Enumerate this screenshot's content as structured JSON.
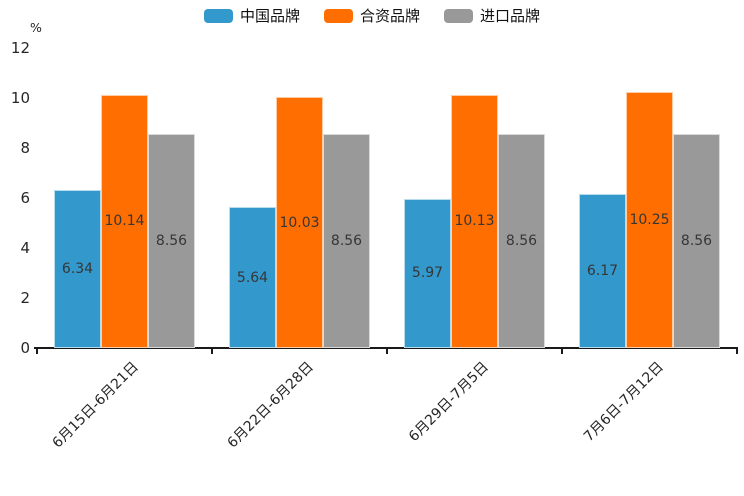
{
  "chart_data": {
    "type": "bar",
    "title": "",
    "xlabel": "",
    "ylabel": "%",
    "ylim": [
      0,
      12
    ],
    "yticks": [
      0,
      2,
      4,
      6,
      8,
      10,
      12
    ],
    "grid": false,
    "legend_position": "top-center",
    "value_labels": "centered-inside-bars",
    "value_label_decimals": 2,
    "categories": [
      "6月15日-6月21日",
      "6月22日-6月28日",
      "6月29日-7月5日",
      "7月6日-7月12日"
    ],
    "series": [
      {
        "name": "中国品牌",
        "color": "#3398CB",
        "values": [
          6.34,
          5.64,
          5.97,
          6.17
        ]
      },
      {
        "name": "合资品牌",
        "color": "#FF6E00",
        "values": [
          10.14,
          10.03,
          10.13,
          10.25
        ]
      },
      {
        "name": "进口品牌",
        "color": "#999999",
        "values": [
          8.56,
          8.56,
          8.56,
          8.56
        ]
      }
    ]
  },
  "colors": {
    "background": "#ffffff",
    "axis": "#1a1a1a",
    "tick_label": "#262626",
    "value_label": "#363636"
  }
}
